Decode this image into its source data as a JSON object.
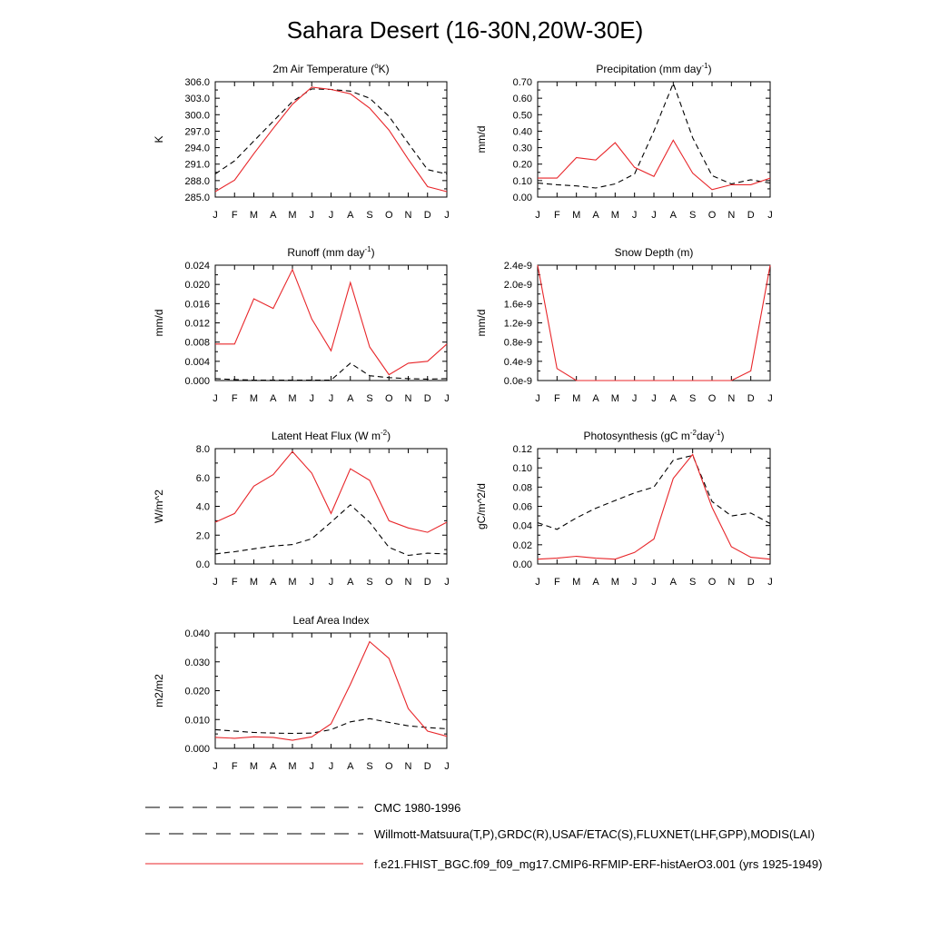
{
  "figure": {
    "title": "Sahara Desert (16-30N,20W-30E)"
  },
  "legend": {
    "entries": [
      {
        "label": "CMC 1980-1996",
        "style": "dashed",
        "color": "#000000"
      },
      {
        "label": "Willmott-Matsuura(T,P),GRDC(R),USAF/ETAC(S),FLUXNET(LHF,GPP),MODIS(LAI)",
        "style": "dashed",
        "color": "#000000"
      },
      {
        "label": "f.e21.FHIST_BGC.f09_f09_mg17.CMIP6-RFMIP-ERF-histAerO3.001 (yrs 1925-1949)",
        "style": "solid",
        "color": "#e8262a"
      }
    ]
  },
  "chart_data": [
    {
      "type": "line",
      "title": "2m Air Temperature (°K)",
      "title_parts": [
        {
          "t": "2m Air Temperature ("
        },
        {
          "t": "o",
          "sup": true
        },
        {
          "t": "K)"
        }
      ],
      "ylabel": "K",
      "x": [
        "J",
        "F",
        "M",
        "A",
        "M",
        "J",
        "J",
        "A",
        "S",
        "O",
        "N",
        "D",
        "J"
      ],
      "ylim": [
        285.0,
        306.0
      ],
      "yticks": [
        "285.0",
        "288.0",
        "291.0",
        "294.0",
        "297.0",
        "300.0",
        "303.0",
        "306.0"
      ],
      "ytick_values": [
        285,
        288,
        291,
        294,
        297,
        300,
        303,
        306
      ],
      "series": [
        {
          "name": "CMC 1980-1996",
          "style": "dashed",
          "color": "#000000",
          "values": [
            289.2,
            291.6,
            295.2,
            298.8,
            302.4,
            304.7,
            304.6,
            304.3,
            303.0,
            299.7,
            294.8,
            290.0,
            289.2
          ]
        },
        {
          "name": "f.e21 model",
          "style": "solid",
          "color": "#e8262a",
          "values": [
            286.0,
            288.1,
            292.9,
            297.5,
            301.9,
            305.0,
            304.6,
            303.8,
            301.2,
            297.2,
            291.9,
            286.9,
            286.0
          ]
        }
      ]
    },
    {
      "type": "line",
      "title": "Precipitation (mm day-1)",
      "title_parts": [
        {
          "t": "Precipitation (mm day"
        },
        {
          "t": "-1",
          "sup": true
        },
        {
          "t": ")"
        }
      ],
      "ylabel": "mm/d",
      "x": [
        "J",
        "F",
        "M",
        "A",
        "M",
        "J",
        "J",
        "A",
        "S",
        "O",
        "N",
        "D",
        "J"
      ],
      "ylim": [
        0.0,
        0.7
      ],
      "yticks": [
        "0.00",
        "0.10",
        "0.20",
        "0.30",
        "0.40",
        "0.50",
        "0.60",
        "0.70"
      ],
      "ytick_values": [
        0.0,
        0.1,
        0.2,
        0.3,
        0.4,
        0.5,
        0.6,
        0.7
      ],
      "series": [
        {
          "name": "Willmott-Matsuura",
          "style": "dashed",
          "color": "#000000",
          "values": [
            0.085,
            0.075,
            0.068,
            0.055,
            0.08,
            0.14,
            0.4,
            0.69,
            0.36,
            0.13,
            0.08,
            0.105,
            0.085
          ]
        },
        {
          "name": "f.e21 model",
          "style": "solid",
          "color": "#e8262a",
          "values": [
            0.115,
            0.115,
            0.24,
            0.225,
            0.33,
            0.18,
            0.125,
            0.345,
            0.145,
            0.045,
            0.075,
            0.075,
            0.115
          ]
        }
      ]
    },
    {
      "type": "line",
      "title": "Runoff (mm day-1)",
      "title_parts": [
        {
          "t": "Runoff (mm day"
        },
        {
          "t": "-1",
          "sup": true
        },
        {
          "t": ")"
        }
      ],
      "ylabel": "mm/d",
      "x": [
        "J",
        "F",
        "M",
        "A",
        "M",
        "J",
        "J",
        "A",
        "S",
        "O",
        "N",
        "D",
        "J"
      ],
      "ylim": [
        0.0,
        0.024
      ],
      "yticks": [
        "0.000",
        "0.004",
        "0.008",
        "0.012",
        "0.016",
        "0.020",
        "0.024"
      ],
      "ytick_values": [
        0,
        0.004,
        0.008,
        0.012,
        0.016,
        0.02,
        0.024
      ],
      "series": [
        {
          "name": "GRDC",
          "style": "dashed",
          "color": "#000000",
          "values": [
            0.0004,
            0.0002,
            0.0001,
            0.0001,
            0.0001,
            0.0001,
            0.0001,
            0.0036,
            0.001,
            0.0006,
            0.0004,
            0.0003,
            0.0004
          ]
        },
        {
          "name": "f.e21 model",
          "style": "solid",
          "color": "#e8262a",
          "values": [
            0.0076,
            0.0076,
            0.017,
            0.015,
            0.0231,
            0.0128,
            0.0062,
            0.0204,
            0.007,
            0.0012,
            0.0036,
            0.004,
            0.0076
          ]
        }
      ]
    },
    {
      "type": "line",
      "title": "Snow Depth (m)",
      "title_parts": [
        {
          "t": "Snow Depth (m)"
        }
      ],
      "ylabel": "mm/d",
      "x": [
        "J",
        "F",
        "M",
        "A",
        "M",
        "J",
        "J",
        "A",
        "S",
        "O",
        "N",
        "D",
        "J"
      ],
      "ylim": [
        0.0,
        2.4e-09
      ],
      "yticks": [
        "0.0e-9",
        "0.4e-9",
        "0.8e-9",
        "1.2e-9",
        "1.6e-9",
        "2.0e-9",
        "2.4e-9"
      ],
      "ytick_values": [
        0,
        4e-10,
        8e-10,
        1.2e-09,
        1.6e-09,
        2e-09,
        2.4e-09
      ],
      "series": [
        {
          "name": "USAF/ETAC",
          "style": "dashed",
          "color": "#000000",
          "values": [
            0,
            0,
            0,
            0,
            0,
            0,
            0,
            0,
            0,
            0,
            0,
            0,
            0
          ]
        },
        {
          "name": "f.e21 model",
          "style": "solid",
          "color": "#e8262a",
          "values": [
            2.4e-09,
            2.5e-10,
            0,
            0,
            0,
            0,
            0,
            0,
            0,
            0,
            0,
            2e-10,
            2.4e-09
          ]
        }
      ]
    },
    {
      "type": "line",
      "title": "Latent Heat Flux (W m-2)",
      "title_parts": [
        {
          "t": "Latent Heat Flux (W m"
        },
        {
          "t": "-2",
          "sup": true
        },
        {
          "t": ")"
        }
      ],
      "ylabel": "W/m^2",
      "x": [
        "J",
        "F",
        "M",
        "A",
        "M",
        "J",
        "J",
        "A",
        "S",
        "O",
        "N",
        "D",
        "J"
      ],
      "ylim": [
        0.0,
        8.0
      ],
      "yticks": [
        "0.0",
        "2.0",
        "4.0",
        "6.0",
        "8.0"
      ],
      "ytick_values": [
        0,
        2,
        4,
        6,
        8
      ],
      "series": [
        {
          "name": "FLUXNET",
          "style": "dashed",
          "color": "#000000",
          "values": [
            0.7,
            0.85,
            1.05,
            1.25,
            1.35,
            1.75,
            2.9,
            4.1,
            2.9,
            1.15,
            0.6,
            0.75,
            0.7
          ]
        },
        {
          "name": "f.e21 model",
          "style": "solid",
          "color": "#e8262a",
          "values": [
            2.9,
            3.5,
            5.4,
            6.2,
            7.8,
            6.3,
            3.5,
            6.6,
            5.8,
            3.0,
            2.5,
            2.2,
            2.9
          ]
        }
      ]
    },
    {
      "type": "line",
      "title": "Photosynthesis (gC m-2day-1)",
      "title_parts": [
        {
          "t": "Photosynthesis (gC m"
        },
        {
          "t": "-2",
          "sup": true
        },
        {
          "t": "day"
        },
        {
          "t": "-1",
          "sup": true
        },
        {
          "t": ")"
        }
      ],
      "ylabel": "gC/m^2/d",
      "x": [
        "J",
        "F",
        "M",
        "A",
        "M",
        "J",
        "J",
        "A",
        "S",
        "O",
        "N",
        "D",
        "J"
      ],
      "ylim": [
        0.0,
        0.12
      ],
      "yticks": [
        "0.00",
        "0.02",
        "0.04",
        "0.06",
        "0.08",
        "0.10",
        "0.12"
      ],
      "ytick_values": [
        0,
        0.02,
        0.04,
        0.06,
        0.08,
        0.1,
        0.12
      ],
      "series": [
        {
          "name": "FLUXNET GPP",
          "style": "dashed",
          "color": "#000000",
          "values": [
            0.043,
            0.036,
            0.048,
            0.058,
            0.066,
            0.074,
            0.08,
            0.108,
            0.113,
            0.065,
            0.05,
            0.053,
            0.042
          ]
        },
        {
          "name": "f.e21 model",
          "style": "solid",
          "color": "#e8262a",
          "values": [
            0.005,
            0.006,
            0.008,
            0.006,
            0.005,
            0.012,
            0.026,
            0.089,
            0.114,
            0.059,
            0.018,
            0.007,
            0.005
          ]
        }
      ]
    },
    {
      "type": "line",
      "title": "Leaf Area Index",
      "title_parts": [
        {
          "t": "Leaf Area Index"
        }
      ],
      "ylabel": "m2/m2",
      "x": [
        "J",
        "F",
        "M",
        "A",
        "M",
        "J",
        "J",
        "A",
        "S",
        "O",
        "N",
        "D",
        "J"
      ],
      "ylim": [
        0.0,
        0.04
      ],
      "yticks": [
        "0.000",
        "0.010",
        "0.020",
        "0.030",
        "0.040"
      ],
      "ytick_values": [
        0,
        0.01,
        0.02,
        0.03,
        0.04
      ],
      "series": [
        {
          "name": "MODIS",
          "style": "dashed",
          "color": "#000000",
          "values": [
            0.0065,
            0.006,
            0.0055,
            0.0053,
            0.0052,
            0.0053,
            0.0065,
            0.0092,
            0.0103,
            0.009,
            0.0078,
            0.0072,
            0.0068
          ]
        },
        {
          "name": "f.e21 model",
          "style": "solid",
          "color": "#e8262a",
          "values": [
            0.0038,
            0.0035,
            0.004,
            0.0038,
            0.0028,
            0.004,
            0.0085,
            0.0222,
            0.037,
            0.0312,
            0.0138,
            0.006,
            0.0042
          ]
        }
      ]
    }
  ]
}
